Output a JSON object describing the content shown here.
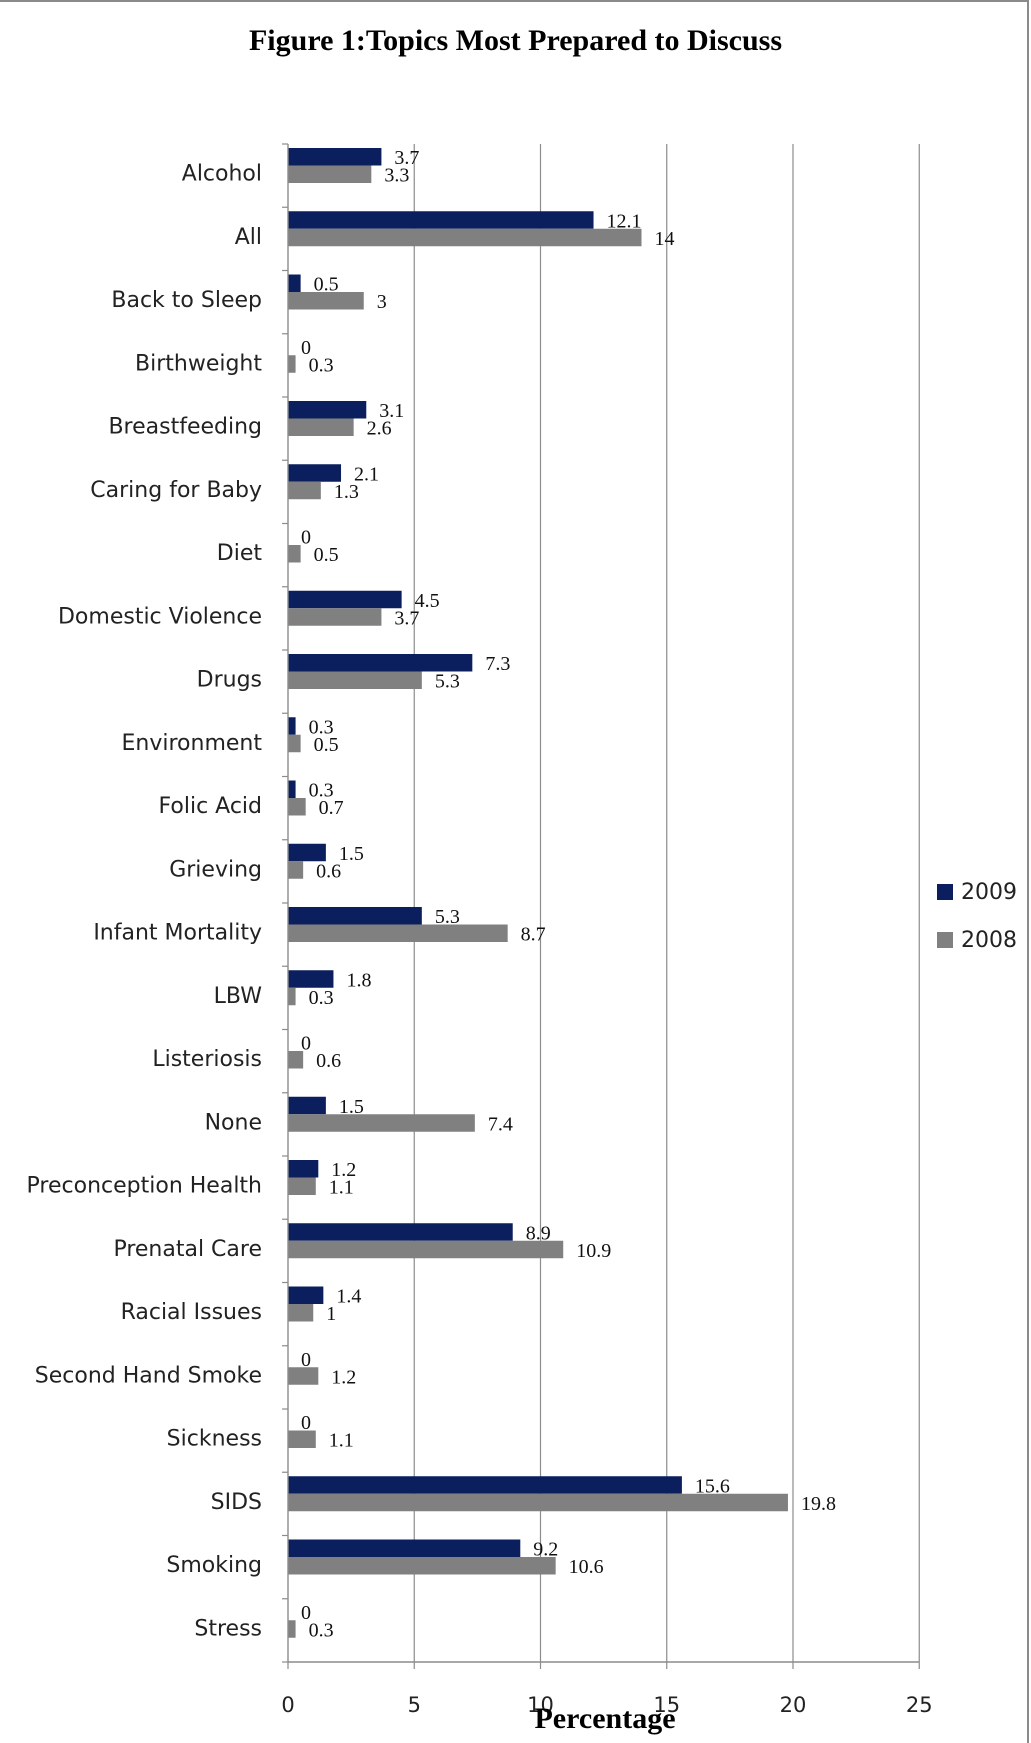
{
  "chart_data": {
    "type": "bar",
    "orientation": "horizontal",
    "title": "Figure 1:Topics Most Prepared to Discuss",
    "xlabel": "Percentage",
    "ylabel": "",
    "xlim": [
      0,
      25
    ],
    "xticks": [
      "0",
      "5",
      "10",
      "15",
      "20",
      "25"
    ],
    "grid": true,
    "legend_position": "right",
    "categories": [
      "Alcohol",
      "All",
      "Back to Sleep",
      "Birthweight",
      "Breastfeeding",
      "Caring for Baby",
      "Diet",
      "Domestic Violence",
      "Drugs",
      "Environment",
      "Folic Acid",
      "Grieving",
      "Infant Mortality",
      "LBW",
      "Listeriosis",
      "None",
      "Preconception Health",
      "Prenatal Care",
      "Racial Issues",
      "Second Hand Smoke",
      "Sickness",
      "SIDS",
      "Smoking",
      "Stress"
    ],
    "series": [
      {
        "name": "2009",
        "color": "#0b1f5e",
        "values": [
          3.7,
          12.1,
          0.5,
          0,
          3.1,
          2.1,
          0,
          4.5,
          7.3,
          0.3,
          0.3,
          1.5,
          5.3,
          1.8,
          0,
          1.5,
          1.2,
          8.9,
          1.4,
          0,
          0,
          15.6,
          9.2,
          0
        ]
      },
      {
        "name": "2008",
        "color": "#808080",
        "values": [
          3.3,
          14,
          3,
          0.3,
          2.6,
          1.3,
          0.5,
          3.7,
          5.3,
          0.5,
          0.7,
          0.6,
          8.7,
          0.3,
          0.6,
          7.4,
          1.1,
          10.9,
          1,
          1.2,
          1.1,
          19.8,
          10.6,
          0.3
        ]
      }
    ]
  }
}
